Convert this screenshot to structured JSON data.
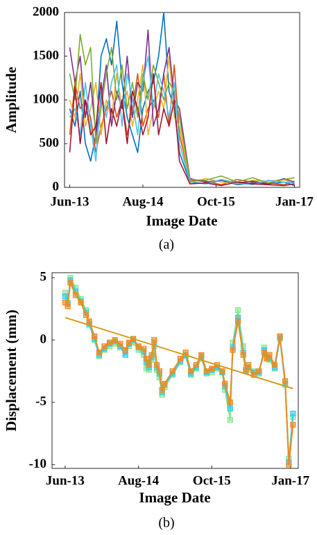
{
  "chart_data": [
    {
      "type": "line",
      "caption": "(a)",
      "ylabel": "Amplitude",
      "xlabel": "Image Date",
      "xlim": [
        -1,
        44
      ],
      "xticks": [
        {
          "value": 0,
          "label": "Jun-13"
        },
        {
          "value": 14,
          "label": "Aug-14"
        },
        {
          "value": 28,
          "label": "Oct-15"
        },
        {
          "value": 43,
          "label": "Jan-17"
        }
      ],
      "ylim": [
        0,
        2000
      ],
      "yticks": [
        0,
        500,
        1000,
        1500,
        2000
      ],
      "grid": false,
      "marker": "none",
      "x": [
        0,
        1,
        2,
        3,
        4,
        5,
        6,
        7,
        8,
        9,
        10,
        11,
        12,
        13,
        14,
        15,
        16,
        17,
        18,
        19,
        20,
        21,
        23,
        26,
        29,
        32,
        35,
        38,
        41,
        43
      ],
      "series": [
        {
          "color": "#0072BD",
          "values": [
            900,
            700,
            1100,
            500,
            300,
            600,
            1500,
            1700,
            1400,
            1900,
            1200,
            800,
            600,
            400,
            900,
            1100,
            1200,
            1500,
            2000,
            1100,
            900,
            400,
            60,
            40,
            80,
            30,
            50,
            40,
            60,
            20
          ]
        },
        {
          "color": "#D95319",
          "values": [
            600,
            1200,
            900,
            1000,
            800,
            400,
            700,
            900,
            1100,
            800,
            1000,
            600,
            900,
            1300,
            700,
            900,
            1000,
            800,
            1300,
            700,
            1400,
            600,
            80,
            70,
            30,
            90,
            60,
            50,
            30,
            70
          ]
        },
        {
          "color": "#EDB120",
          "values": [
            1000,
            800,
            1300,
            700,
            900,
            1200,
            600,
            1000,
            800,
            1300,
            900,
            1100,
            700,
            1000,
            1400,
            600,
            900,
            1100,
            900,
            1500,
            800,
            700,
            50,
            100,
            60,
            40,
            80,
            70,
            90,
            40
          ]
        },
        {
          "color": "#7E2F8E",
          "values": [
            1600,
            1200,
            1500,
            800,
            1200,
            600,
            1000,
            1400,
            700,
            1100,
            900,
            1500,
            800,
            1200,
            1100,
            1800,
            700,
            900,
            1300,
            1600,
            1000,
            900,
            100,
            60,
            80,
            50,
            70,
            40,
            100,
            60
          ]
        },
        {
          "color": "#77AC30",
          "values": [
            1300,
            1000,
            1750,
            1400,
            1600,
            500,
            900,
            1300,
            1600,
            1000,
            1400,
            900,
            1200,
            800,
            1300,
            1000,
            1400,
            1200,
            1000,
            1200,
            1100,
            800,
            90,
            80,
            130,
            60,
            110,
            50,
            90,
            110
          ]
        },
        {
          "color": "#4DBEEE",
          "values": [
            800,
            900,
            600,
            1200,
            700,
            300,
            1100,
            800,
            1200,
            1400,
            700,
            1300,
            1000,
            600,
            1200,
            1500,
            900,
            1300,
            1100,
            800,
            1200,
            500,
            70,
            40,
            90,
            50,
            30,
            80,
            60,
            50
          ]
        },
        {
          "color": "#A2142F",
          "values": [
            400,
            1150,
            500,
            1000,
            600,
            700,
            1200,
            500,
            900,
            700,
            1000,
            500,
            1100,
            900,
            600,
            800,
            1300,
            600,
            900,
            700,
            1000,
            300,
            40,
            50,
            20,
            60,
            40,
            30,
            20,
            40
          ]
        }
      ]
    },
    {
      "type": "line",
      "caption": "(b)",
      "ylabel": "Displacement (mm)",
      "xlabel": "Image Date",
      "xlim": [
        -2.5,
        44.5
      ],
      "xticks": [
        {
          "value": 0,
          "label": "Jun-13"
        },
        {
          "value": 14,
          "label": "Aug-14"
        },
        {
          "value": 28,
          "label": "Oct-15"
        },
        {
          "value": 43,
          "label": "Jan-17"
        }
      ],
      "ylim": [
        -10.3,
        5.4
      ],
      "yticks": [
        -10,
        -5,
        0,
        5
      ],
      "grid": false,
      "marker": "square",
      "x": [
        0,
        0.5,
        1,
        2,
        3,
        4,
        4.6,
        5.6,
        6.5,
        7.5,
        8.5,
        9.5,
        10.5,
        11.5,
        12.2,
        13,
        14,
        15,
        15.5,
        16,
        16.5,
        17,
        17.5,
        18,
        18.5,
        19,
        20.5,
        22,
        23,
        24,
        25,
        26,
        27,
        28,
        29,
        30,
        30.5,
        31.5,
        32,
        33,
        34,
        34.5,
        35,
        36,
        37,
        38,
        38.5,
        39,
        40,
        41,
        42,
        42.7,
        43.5
      ],
      "series": [
        {
          "color": "#8CE68C",
          "values": [
            3.8,
            3.0,
            5.0,
            4.2,
            3.3,
            2.4,
            1.2,
            0.0,
            -1.3,
            -0.8,
            -0.5,
            -0.3,
            -0.6,
            -1.0,
            -0.5,
            -0.2,
            -0.8,
            -1.2,
            -2.3,
            -2.4,
            -1.6,
            -0.5,
            -2.4,
            -3.0,
            -4.4,
            -3.8,
            -2.8,
            -1.8,
            -1.3,
            -2.8,
            -2.3,
            -1.5,
            -2.7,
            -2.6,
            -2.3,
            -2.6,
            -4.0,
            -6.4,
            -0.2,
            2.4,
            -0.5,
            -2.2,
            -2.4,
            -2.5,
            -2.7,
            -0.6,
            -1.2,
            -1.6,
            -2.3,
            0.1,
            -3.6,
            -9.5,
            -6.2
          ]
        },
        {
          "color": "#33CCEE",
          "values": [
            3.5,
            2.9,
            4.8,
            3.9,
            3.1,
            2.2,
            1.3,
            0.1,
            -1.2,
            -0.7,
            -0.3,
            -0.1,
            -0.5,
            -1.2,
            -0.3,
            0,
            -0.6,
            -0.9,
            -1.8,
            -2.2,
            -1.4,
            -0.2,
            -2.2,
            -2.7,
            -4.2,
            -3.6,
            -2.7,
            -1.7,
            -1.2,
            -2.7,
            -2.2,
            -1.3,
            -2.6,
            -2.4,
            -2.2,
            -2.6,
            -3.7,
            -5.5,
            -0.6,
            1.8,
            -1.0,
            -2.4,
            -2.2,
            -2.6,
            -2.6,
            -0.8,
            -1.4,
            -1.4,
            -2.2,
            0.2,
            -3.5,
            -9.8,
            -5.9
          ]
        },
        {
          "color": "#F08A1C",
          "values": [
            3.0,
            2.7,
            4.6,
            3.6,
            3.0,
            2.0,
            1.5,
            0.3,
            -1.0,
            -0.5,
            -0.2,
            0,
            -0.3,
            -0.8,
            -0.2,
            0.1,
            -0.5,
            -0.7,
            -1.5,
            -2.0,
            -1.2,
            0,
            -2.0,
            -2.5,
            -4.0,
            -3.5,
            -2.5,
            -1.5,
            -1.0,
            -2.5,
            -2.0,
            -1.2,
            -2.5,
            -2.3,
            -2.0,
            -2.5,
            -3.5,
            -5.0,
            -0.8,
            1.5,
            -1.2,
            -2.5,
            -2.0,
            -2.8,
            -2.5,
            -1.0,
            -1.5,
            -1.2,
            -2.0,
            0.3,
            -3.3,
            -10.0,
            -6.8
          ]
        },
        {
          "color": "#D99A1A",
          "marker": "none",
          "x": [
            0,
            43.5
          ],
          "values": [
            1.8,
            -3.9
          ]
        }
      ]
    }
  ]
}
